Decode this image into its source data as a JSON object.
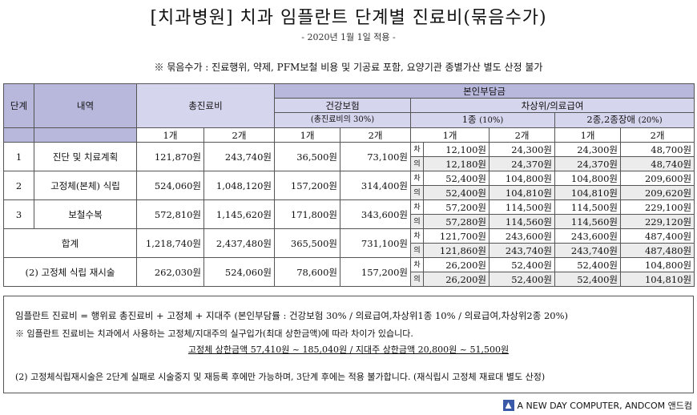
{
  "title": "[치과병원] 치과 임플란트 단계별 진료비(묶음수가)",
  "date": "- 2020년 1월 1일 적용 -",
  "note": "※ 묶음수가 : 진료행위, 약제, PFM보철 비용 및 기공료 포함, 요양기관 종별가산 별도 산정 불가",
  "table": {
    "h_stage": "단계",
    "h_item": "내역",
    "h_total": "총진료비",
    "h_copay": "본인부담금",
    "h_health": "건강보험",
    "h_health_sub": "(총진료비의 30%)",
    "h_upper": "차상위/의료급여",
    "h_type1": "1종",
    "h_type1_pct": "(10%)",
    "h_type2": "2종,2종장애",
    "h_type2_pct": "(20%)",
    "one": "1개",
    "two": "2개",
    "rows": [
      {
        "stage": "1",
        "item": "진단 및 치료계획",
        "t1": "121,870원",
        "t2": "243,740원",
        "h1": "36,500원",
        "h2": "73,100원",
        "a_tag": "차",
        "a": [
          "12,100원",
          "24,300원",
          "24,300원",
          "48,700원"
        ],
        "b_tag": "의",
        "b": [
          "12,180원",
          "24,370원",
          "24,370원",
          "48,740원"
        ]
      },
      {
        "stage": "2",
        "item": "고정체(본체) 식립",
        "t1": "524,060원",
        "t2": "1,048,120원",
        "h1": "157,200원",
        "h2": "314,400원",
        "a_tag": "차",
        "a": [
          "52,400원",
          "104,800원",
          "104,800원",
          "209,600원"
        ],
        "b_tag": "의",
        "b": [
          "52,400원",
          "104,810원",
          "104,810원",
          "209,620원"
        ]
      },
      {
        "stage": "3",
        "item": "보철수복",
        "t1": "572,810원",
        "t2": "1,145,620원",
        "h1": "171,800원",
        "h2": "343,600원",
        "a_tag": "차",
        "a": [
          "57,200원",
          "114,500원",
          "114,500원",
          "229,100원"
        ],
        "b_tag": "의",
        "b": [
          "57,280원",
          "114,560원",
          "114,560원",
          "229,120원"
        ]
      },
      {
        "stage": "합계",
        "item": "",
        "t1": "1,218,740원",
        "t2": "2,437,480원",
        "h1": "365,500원",
        "h2": "731,100원",
        "a_tag": "차",
        "a": [
          "121,700원",
          "243,600원",
          "243,600원",
          "487,400원"
        ],
        "b_tag": "의",
        "b": [
          "121,860원",
          "243,740원",
          "243,740원",
          "487,480원"
        ]
      },
      {
        "stage": "(2) 고정체 식립 재시술",
        "item": "",
        "t1": "262,030원",
        "t2": "524,060원",
        "h1": "78,600원",
        "h2": "157,200원",
        "a_tag": "차",
        "a": [
          "26,200원",
          "52,400원",
          "52,400원",
          "104,800원"
        ],
        "b_tag": "의",
        "b": [
          "26,200원",
          "52,400원",
          "52,400원",
          "104,810원"
        ]
      }
    ]
  },
  "footer": {
    "line1": "임플란트 진료비 = 행위료 총진료비 + 고정체 + 지대주 (본인부담률 : 건강보험 30% / 의료급여,차상위1종 10% / 의료급여,차상위2종 20%)",
    "line2": "※ 임플란트 진료비는 치과에서 사용하는 고정체/지대주의 실구입가(최대 상한금액)에 따라 차이가 있습니다.",
    "line3": "고정체 상한금액 57,410원 ~ 185,040원 / 지대주 상한금액 20,800원 ~ 51,500원",
    "line4": "(2) 고정체식립재시술은 2단계 실패로 시술중지 및 재등록 후에만 가능하며, 3단계 후에는 적용 불가합니다. (재식립시 고정체 재료대 별도 산정)"
  },
  "brand": "A NEW DAY COMPUTER, ANDCOM 앤드컴",
  "colors": {
    "header_dark": "#b8b7dc",
    "header_light": "#d6d5ee",
    "shade": "#ececec"
  }
}
